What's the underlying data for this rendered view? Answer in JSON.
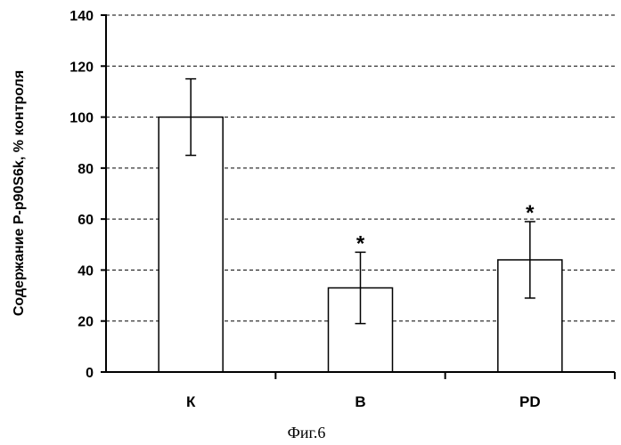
{
  "chart_data": {
    "type": "bar",
    "categories": [
      "К",
      "В",
      "PD"
    ],
    "values": [
      100,
      33,
      44
    ],
    "errors": [
      15,
      14,
      15
    ],
    "significance": [
      "",
      "*",
      "*"
    ],
    "ylabel": "Содержание P-p90S6k, % контроля",
    "xlabel": "",
    "ylim": [
      0,
      140
    ],
    "yticks": [
      "0",
      "20",
      "40",
      "60",
      "80",
      "100",
      "120",
      "140"
    ],
    "grid": true,
    "grid_style": "dashed",
    "caption": "Фиг.6"
  }
}
